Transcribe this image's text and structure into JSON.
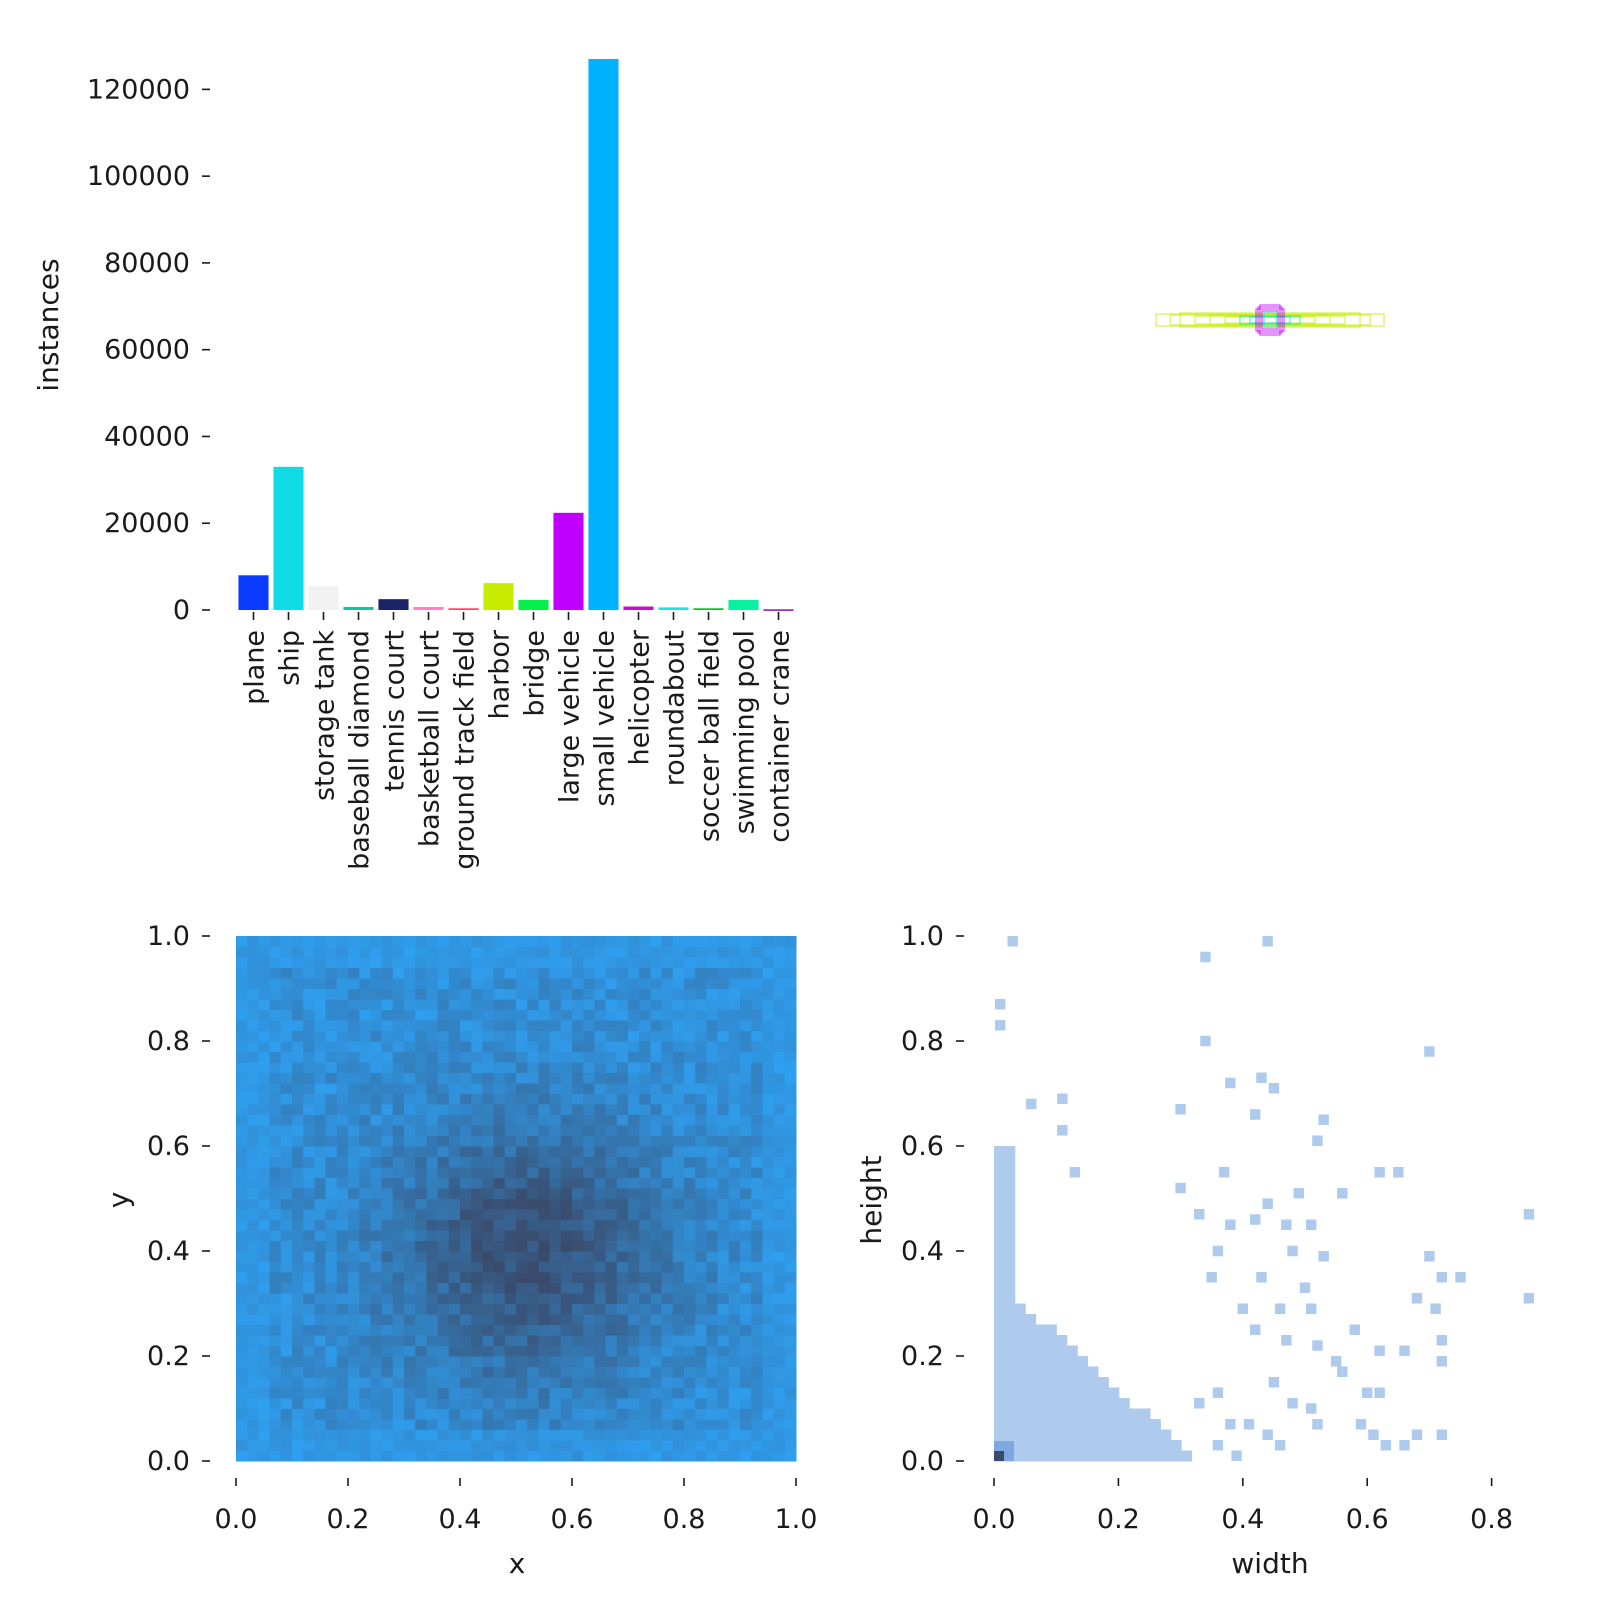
{
  "chart_data": [
    {
      "type": "bar",
      "ylabel": "instances",
      "xlabel": "",
      "ylim": [
        0,
        127000
      ],
      "yticks": [
        "0",
        "20000",
        "40000",
        "60000",
        "80000",
        "100000",
        "120000"
      ],
      "categories": [
        "plane",
        "ship",
        "storage tank",
        "baseball diamond",
        "tennis court",
        "basketball court",
        "ground track field",
        "harbor",
        "bridge",
        "large vehicle",
        "small vehicle",
        "helicopter",
        "roundabout",
        "soccer ball field",
        "swimming pool",
        "container crane"
      ],
      "values": [
        8000,
        33000,
        5500,
        700,
        2500,
        700,
        400,
        6200,
        2300,
        22400,
        127000,
        800,
        600,
        400,
        2300,
        150
      ],
      "colors": [
        "#0a3cff",
        "#0edbe6",
        "#f2f2f2",
        "#18c0a0",
        "#1a2466",
        "#ff80c8",
        "#ff4a5a",
        "#c7ec00",
        "#08ee4a",
        "#c000ff",
        "#00b2ff",
        "#c012c8",
        "#20e0e0",
        "#18c028",
        "#08f0a0",
        "#7a10c0"
      ]
    },
    {
      "type": "scatter",
      "description_key": "box-overlay",
      "colors": [
        "#c7ec00",
        "#c000ff",
        "#0edbe6",
        "#08f0a0"
      ]
    },
    {
      "type": "heatmap",
      "xlabel": "x",
      "ylabel": "y",
      "xlim": [
        0,
        1
      ],
      "ylim": [
        0,
        1
      ],
      "xticks": [
        "0.0",
        "0.2",
        "0.4",
        "0.6",
        "0.8",
        "1.0"
      ],
      "yticks": [
        "0.0",
        "0.2",
        "0.4",
        "0.6",
        "0.8",
        "1.0"
      ],
      "bins": 50,
      "low_color": "#2f9ff0",
      "high_color": "#3a4a6a"
    },
    {
      "type": "heatmap",
      "xlabel": "width",
      "ylabel": "height",
      "xlim": [
        0,
        0.86
      ],
      "ylim": [
        0,
        1
      ],
      "xticks": [
        "0.0",
        "0.2",
        "0.4",
        "0.6",
        "0.8"
      ],
      "yticks": [
        "0.0",
        "0.2",
        "0.4",
        "0.6",
        "0.8",
        "1.0"
      ],
      "cell_color": "#aecbee",
      "dense_color": "#3a4a6a"
    }
  ]
}
